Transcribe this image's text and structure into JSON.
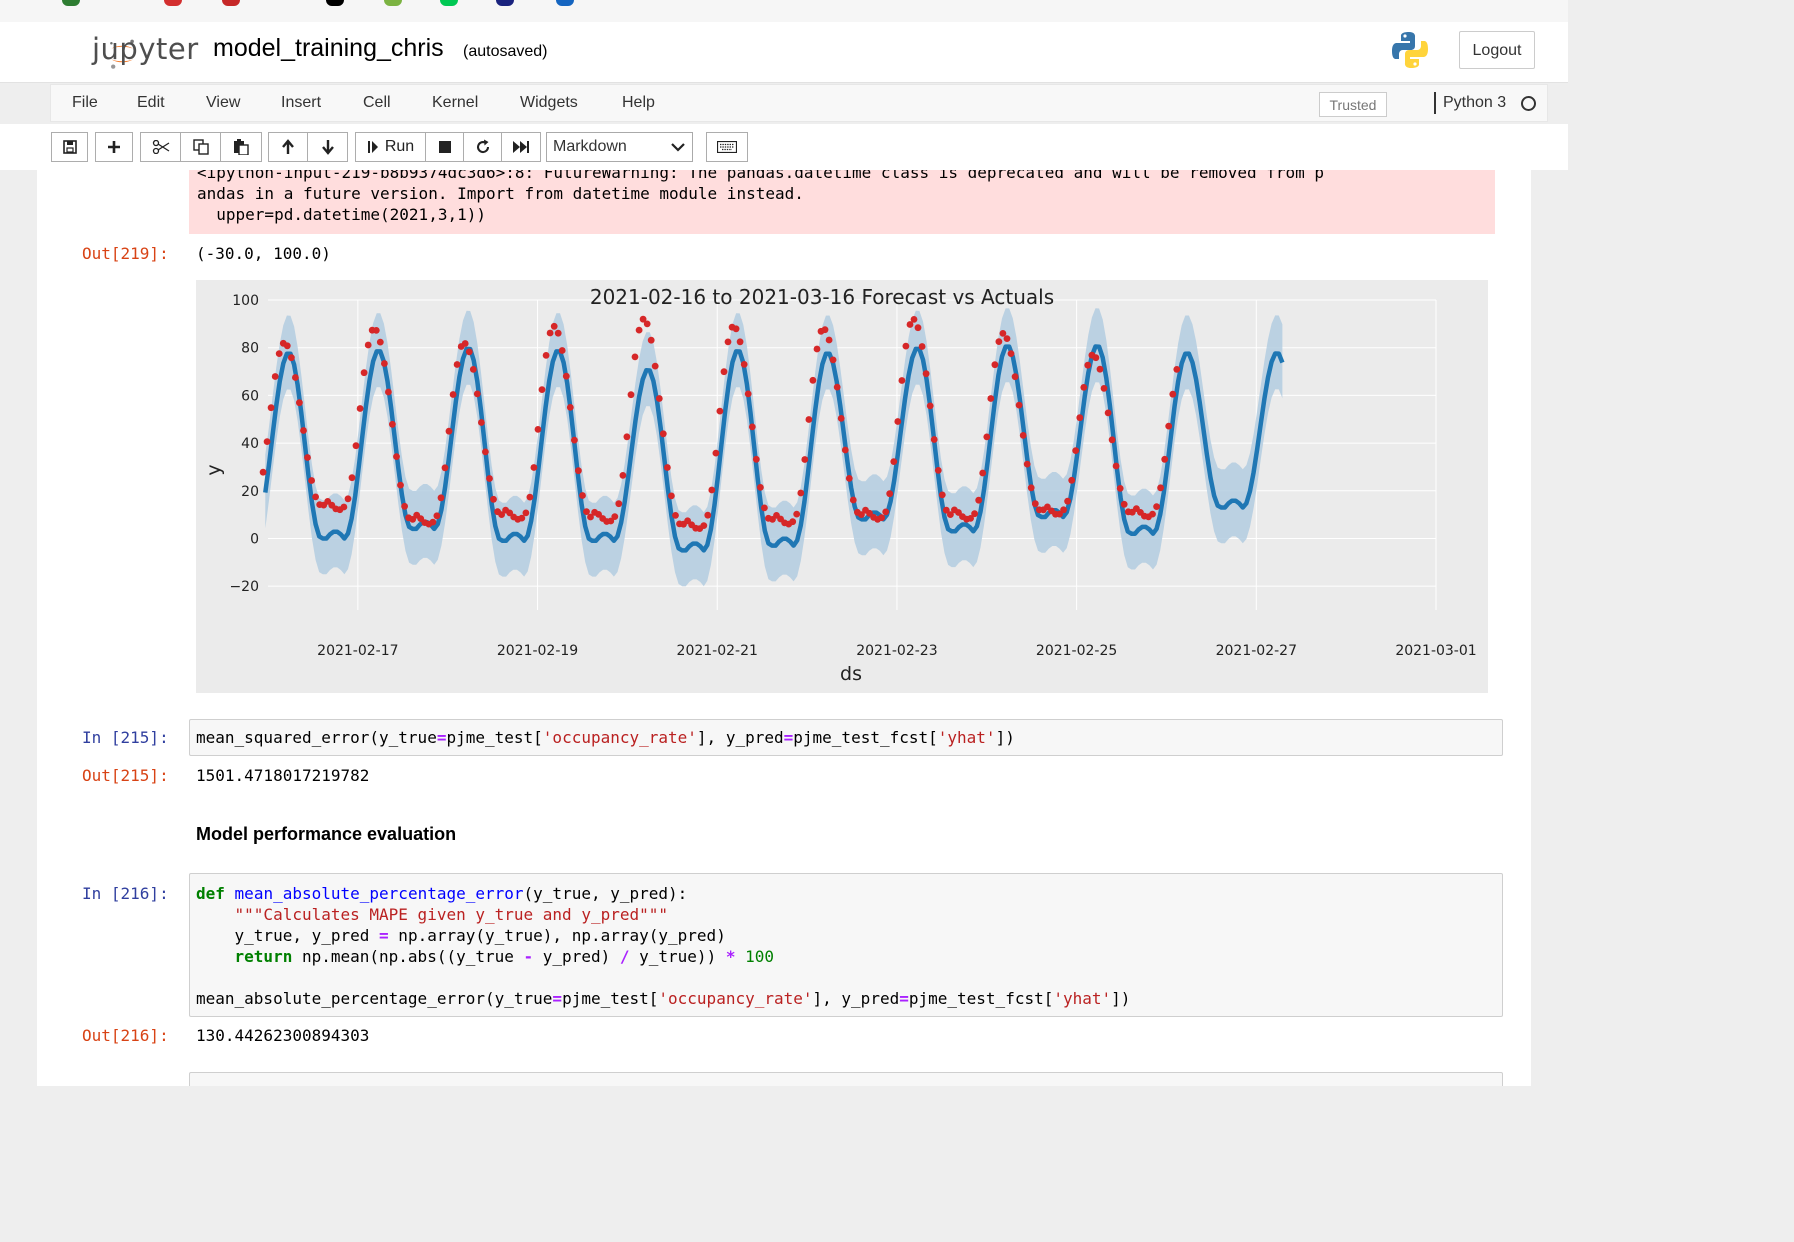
{
  "header": {
    "logo_text": "jupyter",
    "notebook_name": "model_training_chris",
    "status": "(autosaved)",
    "logout_label": "Logout"
  },
  "menubar": {
    "items": [
      "File",
      "Edit",
      "View",
      "Insert",
      "Cell",
      "Kernel",
      "Widgets",
      "Help"
    ],
    "trusted_label": "Trusted",
    "kernel_name": "Python 3"
  },
  "toolbar": {
    "run_label": "Run",
    "cell_type": "Markdown",
    "icons": [
      "save-icon",
      "plus-icon",
      "scissors-icon",
      "copy-icon",
      "paste-icon",
      "arrow-up-icon",
      "arrow-down-icon",
      "run-icon",
      "stop-icon",
      "restart-icon",
      "fast-forward-icon",
      "keyboard-icon"
    ]
  },
  "cells": {
    "warning_line1": "<ipython-input-219-b8b9374dc3d6>:8: FutureWarning: The pandas.datetime class is deprecated and will be removed from p",
    "warning_line2": "andas in a future version. Import from datetime module instead.",
    "warning_line3": "  upper=pd.datetime(2021,3,1))",
    "out219_prompt": "Out[219]:",
    "out219_value": "(-30.0, 100.0)",
    "in215_prompt": "In [215]:",
    "in215_code": {
      "a": "mean_squared_error(y_true",
      "b": "=",
      "c": "pjme_test[",
      "d": "'occupancy_rate'",
      "e": "], y_pred",
      "f": "=",
      "g": "pjme_test_fcst[",
      "h": "'yhat'",
      "i": "])"
    },
    "out215_prompt": "Out[215]:",
    "out215_value": "1501.4718017219782",
    "markdown_heading": "Model performance evaluation",
    "in216_prompt": "In [216]:",
    "in216_code": {
      "l1_def": "def",
      "l1_name": "mean_absolute_percentage_error",
      "l1_rest": "(y_true, y_pred):",
      "l2_doc": "    \"\"\"Calculates MAPE given y_true and y_pred\"\"\"",
      "l3_a": "    y_true, y_pred ",
      "l3_op": "=",
      "l3_b": " np.array(y_true), np.array(y_pred)",
      "l4_ret": "    return",
      "l4_a": " np.mean(np.abs((y_true ",
      "l4_minus": "-",
      "l4_b": " y_pred) ",
      "l4_div": "/",
      "l4_c": " y_true)) ",
      "l4_mul": "*",
      "l4_num": " 100",
      "l6_a": "mean_absolute_percentage_error(y_true",
      "l6_eq1": "=",
      "l6_b": "pjme_test[",
      "l6_str1": "'occupancy_rate'",
      "l6_c": "], y_pred",
      "l6_eq2": "=",
      "l6_d": "pjme_test_fcst[",
      "l6_str2": "'yhat'",
      "l6_e": "])"
    },
    "out216_prompt": "Out[216]:",
    "out216_value": "130.44262300894303"
  },
  "chart_data": {
    "type": "line",
    "title": "2021-02-16 to 2021-03-16 Forecast vs Actuals",
    "xlabel": "ds",
    "ylabel": "y",
    "ylim": [
      -30,
      100
    ],
    "yticks": [
      "−20",
      "0",
      "20",
      "40",
      "60",
      "80",
      "100"
    ],
    "ytick_values": [
      -20,
      0,
      20,
      40,
      60,
      80,
      100
    ],
    "xticks": [
      "2021-02-17",
      "2021-02-19",
      "2021-02-21",
      "2021-02-23",
      "2021-02-25",
      "2021-02-27",
      "2021-03-01"
    ],
    "x_start": "2021-02-16",
    "x_end": "2021-03-01",
    "grid": true,
    "forecast_peaks": [
      78,
      79,
      80,
      79,
      71,
      79,
      78,
      80,
      81,
      81,
      78
    ],
    "forecast_troughs": [
      2,
      0,
      4,
      -1,
      -1,
      -5,
      -3,
      8,
      3,
      9,
      2,
      13
    ],
    "actual_peaks": [
      82,
      88,
      82,
      89,
      92,
      89,
      88,
      92,
      86,
      77
    ],
    "actual_troughs": [
      15,
      14,
      8,
      10,
      9,
      6,
      8,
      10,
      10,
      12,
      11,
      12
    ],
    "colors": {
      "forecast": "#1f77b4",
      "band": "#b3cde0",
      "actual": "#d62728",
      "plot_bg": "#ebebeb"
    }
  }
}
